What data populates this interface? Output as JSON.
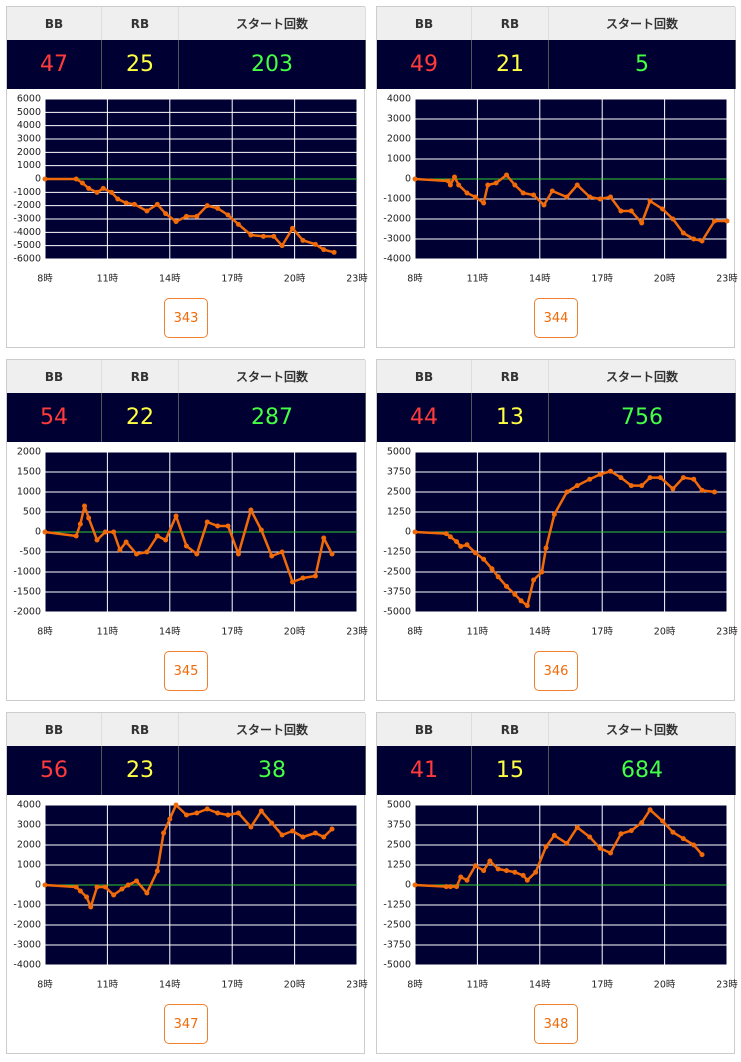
{
  "panels": [
    {
      "headers": [
        "BB",
        "RB",
        "スタート回数"
      ],
      "bb": 47,
      "rb": 25,
      "start": 203,
      "button": "343"
    },
    {
      "headers": [
        "BB",
        "RB",
        "スタート回数"
      ],
      "bb": 49,
      "rb": 21,
      "start": 5,
      "button": "344"
    },
    {
      "headers": [
        "BB",
        "RB",
        "スタート回数"
      ],
      "bb": 54,
      "rb": 22,
      "start": 287,
      "button": "345"
    },
    {
      "headers": [
        "BB",
        "RB",
        "スタート回数"
      ],
      "bb": 44,
      "rb": 13,
      "start": 756,
      "button": "346"
    },
    {
      "headers": [
        "BB",
        "RB",
        "スタート回数"
      ],
      "bb": 56,
      "rb": 23,
      "start": 38,
      "button": "347"
    },
    {
      "headers": [
        "BB",
        "RB",
        "スタート回数"
      ],
      "bb": 41,
      "rb": 15,
      "start": 684,
      "button": "348"
    }
  ],
  "chart_data": [
    {
      "type": "line",
      "color": "#f06a0a",
      "background": "#000033",
      "grid": true,
      "baseline_color": "#33cc33",
      "xlim": [
        8,
        23
      ],
      "xticks": [
        {
          "value": 8,
          "label": "8時"
        },
        {
          "value": 11,
          "label": "11時"
        },
        {
          "value": 14,
          "label": "14時"
        },
        {
          "value": 17,
          "label": "17時"
        },
        {
          "value": 20,
          "label": "20時"
        },
        {
          "value": 23,
          "label": "23時"
        }
      ],
      "ylim": [
        -6000,
        6000
      ],
      "yticks": [
        -6000,
        -5000,
        -4000,
        -3000,
        -2000,
        -1000,
        0,
        1000,
        2000,
        3000,
        4000,
        5000,
        6000
      ],
      "x": [
        8,
        9.5,
        9.8,
        10.1,
        10.5,
        10.8,
        11.2,
        11.5,
        11.9,
        12.3,
        12.9,
        13.4,
        13.8,
        14.3,
        14.8,
        15.3,
        15.8,
        16.3,
        16.8,
        17.3,
        17.9,
        18.5,
        19,
        19.4,
        19.9,
        20.4,
        21,
        21.4,
        21.9
      ],
      "values": [
        0,
        0,
        -300,
        -700,
        -1000,
        -700,
        -1000,
        -1500,
        -1800,
        -1900,
        -2400,
        -1900,
        -2600,
        -3200,
        -2800,
        -2800,
        -2000,
        -2200,
        -2700,
        -3400,
        -4200,
        -4300,
        -4300,
        -5000,
        -3700,
        -4600,
        -4900,
        -5300,
        -5500
      ]
    },
    {
      "type": "line",
      "color": "#f06a0a",
      "background": "#000033",
      "grid": true,
      "baseline_color": "#33cc33",
      "xlim": [
        8,
        23
      ],
      "xticks": [
        {
          "value": 8,
          "label": "8時"
        },
        {
          "value": 11,
          "label": "11時"
        },
        {
          "value": 14,
          "label": "14時"
        },
        {
          "value": 17,
          "label": "17時"
        },
        {
          "value": 20,
          "label": "20時"
        },
        {
          "value": 23,
          "label": "23時"
        }
      ],
      "ylim": [
        -4000,
        4000
      ],
      "yticks": [
        -4000,
        -3000,
        -2000,
        -1000,
        0,
        1000,
        2000,
        3000,
        4000
      ],
      "x": [
        8,
        9.6,
        9.7,
        9.9,
        10.1,
        10.5,
        10.9,
        11.3,
        11.5,
        11.9,
        12.4,
        12.8,
        13.2,
        13.7,
        14.2,
        14.6,
        15.3,
        15.8,
        16.4,
        16.9,
        17.4,
        17.9,
        18.4,
        18.9,
        19.3,
        19.9,
        20.4,
        20.9,
        21.4,
        21.8,
        22.4,
        23
      ],
      "values": [
        0,
        -100,
        -300,
        100,
        -300,
        -700,
        -900,
        -1200,
        -300,
        -200,
        200,
        -300,
        -700,
        -800,
        -1300,
        -600,
        -900,
        -300,
        -900,
        -1000,
        -900,
        -1600,
        -1600,
        -2200,
        -1100,
        -1500,
        -2000,
        -2700,
        -3000,
        -3100,
        -2100,
        -2100
      ]
    },
    {
      "type": "line",
      "color": "#f06a0a",
      "background": "#000033",
      "grid": true,
      "baseline_color": "#33cc33",
      "xlim": [
        8,
        23
      ],
      "xticks": [
        {
          "value": 8,
          "label": "8時"
        },
        {
          "value": 11,
          "label": "11時"
        },
        {
          "value": 14,
          "label": "14時"
        },
        {
          "value": 17,
          "label": "17時"
        },
        {
          "value": 20,
          "label": "20時"
        },
        {
          "value": 23,
          "label": "23時"
        }
      ],
      "ylim": [
        -2000,
        2000
      ],
      "yticks": [
        -2000,
        -1500,
        -1000,
        -500,
        0,
        500,
        1000,
        1500,
        2000
      ],
      "x": [
        8,
        9.5,
        9.7,
        9.9,
        10.1,
        10.5,
        10.9,
        11.3,
        11.6,
        11.9,
        12.4,
        12.9,
        13.4,
        13.8,
        14.3,
        14.8,
        15.3,
        15.8,
        16.3,
        16.8,
        17.3,
        17.9,
        18.4,
        18.9,
        19.4,
        19.9,
        20.4,
        21,
        21.4,
        21.8
      ],
      "values": [
        0,
        -100,
        200,
        650,
        350,
        -200,
        0,
        0,
        -450,
        -250,
        -550,
        -500,
        -100,
        -200,
        400,
        -350,
        -550,
        250,
        150,
        150,
        -550,
        550,
        50,
        -600,
        -500,
        -1250,
        -1150,
        -1100,
        -150,
        -550
      ]
    },
    {
      "type": "line",
      "color": "#f06a0a",
      "background": "#000033",
      "grid": true,
      "baseline_color": "#33cc33",
      "xlim": [
        8,
        23
      ],
      "xticks": [
        {
          "value": 8,
          "label": "8時"
        },
        {
          "value": 11,
          "label": "11時"
        },
        {
          "value": 14,
          "label": "14時"
        },
        {
          "value": 17,
          "label": "17時"
        },
        {
          "value": 20,
          "label": "20時"
        },
        {
          "value": 23,
          "label": "23時"
        }
      ],
      "ylim": [
        -5000,
        5000
      ],
      "yticks": [
        -5000,
        -3750,
        -2500,
        -1250,
        0,
        1250,
        2500,
        3750,
        5000
      ],
      "x": [
        8,
        9.5,
        9.7,
        10,
        10.2,
        10.5,
        10.9,
        11.3,
        11.7,
        12,
        12.4,
        12.8,
        13.1,
        13.4,
        13.7,
        14.1,
        14.3,
        14.7,
        15.3,
        15.8,
        16.4,
        16.9,
        17.4,
        17.9,
        18.4,
        18.9,
        19.3,
        19.8,
        20.4,
        20.9,
        21.4,
        21.8,
        22.4
      ],
      "values": [
        0,
        -100,
        -300,
        -600,
        -900,
        -800,
        -1300,
        -1700,
        -2300,
        -2800,
        -3400,
        -3900,
        -4300,
        -4600,
        -3000,
        -2500,
        -1000,
        1100,
        2500,
        2900,
        3300,
        3600,
        3800,
        3400,
        2900,
        2900,
        3400,
        3400,
        2700,
        3400,
        3300,
        2600,
        2500
      ]
    },
    {
      "type": "line",
      "color": "#f06a0a",
      "background": "#000033",
      "grid": true,
      "baseline_color": "#33cc33",
      "xlim": [
        8,
        23
      ],
      "xticks": [
        {
          "value": 8,
          "label": "8時"
        },
        {
          "value": 11,
          "label": "11時"
        },
        {
          "value": 14,
          "label": "14時"
        },
        {
          "value": 17,
          "label": "17時"
        },
        {
          "value": 20,
          "label": "20時"
        },
        {
          "value": 23,
          "label": "23時"
        }
      ],
      "ylim": [
        -4000,
        4000
      ],
      "yticks": [
        -4000,
        -3000,
        -2000,
        -1000,
        0,
        1000,
        2000,
        3000,
        4000
      ],
      "x": [
        8,
        9.5,
        9.7,
        10,
        10.2,
        10.5,
        10.9,
        11.3,
        11.7,
        12,
        12.4,
        12.9,
        13.4,
        13.7,
        14,
        14.3,
        14.8,
        15.3,
        15.8,
        16.3,
        16.8,
        17.3,
        17.9,
        18.4,
        18.9,
        19.4,
        19.9,
        20.4,
        21,
        21.4,
        21.8
      ],
      "values": [
        0,
        -100,
        -300,
        -600,
        -1100,
        -100,
        -100,
        -500,
        -200,
        0,
        200,
        -400,
        700,
        2600,
        3300,
        4000,
        3500,
        3600,
        3800,
        3600,
        3500,
        3600,
        2900,
        3700,
        3100,
        2500,
        2700,
        2400,
        2600,
        2400,
        2800
      ]
    },
    {
      "type": "line",
      "color": "#f06a0a",
      "background": "#000033",
      "grid": true,
      "baseline_color": "#33cc33",
      "xlim": [
        8,
        23
      ],
      "xticks": [
        {
          "value": 8,
          "label": "8時"
        },
        {
          "value": 11,
          "label": "11時"
        },
        {
          "value": 14,
          "label": "14時"
        },
        {
          "value": 17,
          "label": "17時"
        },
        {
          "value": 20,
          "label": "20時"
        },
        {
          "value": 23,
          "label": "23時"
        }
      ],
      "ylim": [
        -5000,
        5000
      ],
      "yticks": [
        -5000,
        -3750,
        -2500,
        -1250,
        0,
        1250,
        2500,
        3750,
        5000
      ],
      "x": [
        8,
        9.5,
        9.7,
        10,
        10.2,
        10.5,
        10.9,
        11.3,
        11.6,
        12,
        12.4,
        12.8,
        13.2,
        13.4,
        13.8,
        14.3,
        14.7,
        15.3,
        15.8,
        16.4,
        16.9,
        17.4,
        17.9,
        18.4,
        18.9,
        19.3,
        19.9,
        20.4,
        20.9,
        21.4,
        21.8
      ],
      "values": [
        0,
        -100,
        -100,
        -100,
        500,
        300,
        1200,
        900,
        1500,
        1000,
        900,
        800,
        600,
        300,
        800,
        2400,
        3100,
        2600,
        3600,
        3000,
        2300,
        2000,
        3200,
        3400,
        3900,
        4700,
        4000,
        3300,
        2900,
        2500,
        1900
      ]
    }
  ]
}
